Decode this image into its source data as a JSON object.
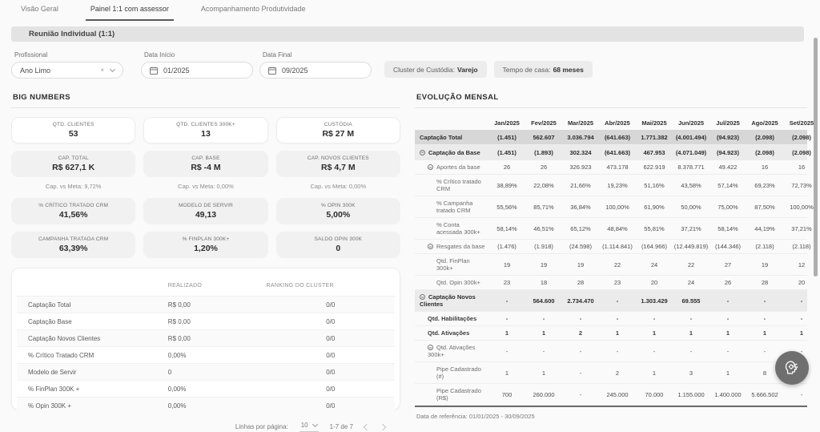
{
  "tabs": [
    {
      "label": "Visão Geral"
    },
    {
      "label": "Painel 1:1 com assessor",
      "active": true
    },
    {
      "label": "Acompanhamento Produtividade"
    }
  ],
  "section_header": "Reunião Individual (1:1)",
  "filters": {
    "profissional": {
      "label": "Profissional",
      "value": "Ano Limo"
    },
    "data_inicio": {
      "label": "Data Início",
      "value": "01/2025"
    },
    "data_final": {
      "label": "Data Final",
      "value": "09/2025"
    },
    "badges": [
      {
        "label": "Cluster de Custódia:",
        "value": "Varejo"
      },
      {
        "label": "Tempo de casa:",
        "value": "68 meses"
      }
    ]
  },
  "big_numbers": {
    "title": "BIG NUMBERS",
    "rows": [
      {
        "variant": "white",
        "cards": [
          {
            "label": "QTD. CLIENTES",
            "value": "53"
          },
          {
            "label": "QTD. CLIENTES 300K+",
            "value": "13"
          },
          {
            "label": "CUSTÓDIA",
            "value": "R$ 27 M"
          }
        ]
      },
      {
        "variant": "gray",
        "cards": [
          {
            "label": "CAP. TOTAL",
            "value": "R$ 627,1 K",
            "meta": "Cap. vs Meta: 9,72%"
          },
          {
            "label": "CAP. BASE",
            "value": "R$ -4 M",
            "meta": "Cap. vs Meta: 0,00%"
          },
          {
            "label": "CAP. NOVOS CLIENTES",
            "value": "R$ 4,7 M",
            "meta": "Cap. vs Meta: 0,00%"
          }
        ]
      },
      {
        "variant": "gray",
        "cards": [
          {
            "label": "% CRÍTICO TRATADO CRM",
            "value": "41,56%"
          },
          {
            "label": "MODELO DE SERVIR",
            "value": "49,13"
          },
          {
            "label": "% OPIN 300K",
            "value": "5,00%"
          }
        ]
      },
      {
        "variant": "gray",
        "cards": [
          {
            "label": "CAMPANHA TRATADA CRM",
            "value": "63,39%"
          },
          {
            "label": "% FINPLAN 300K+",
            "value": "1,20%"
          },
          {
            "label": "SALDO OPIN 300K",
            "value": "0"
          }
        ]
      }
    ]
  },
  "ranking_table": {
    "columns": [
      "",
      "REALIZADO",
      "RANKING DO CLUSTER"
    ],
    "rows": [
      [
        "Captação Total",
        "R$ 0,00",
        "0/0"
      ],
      [
        "Captação Base",
        "R$ 0,00",
        "0/0"
      ],
      [
        "Captação Novos Clientes",
        "R$ 0,00",
        "0/0"
      ],
      [
        "% Crítico Tratado CRM",
        "0,00%",
        "0/0"
      ],
      [
        "Modelo de Servir",
        "0",
        "0/0"
      ],
      [
        "% FinPlan 300K +",
        "0,00%",
        "0/0"
      ],
      [
        "% Opin 300K +",
        "0,00%",
        "0/0"
      ]
    ],
    "pagination": {
      "label": "Linhas por página:",
      "page_size": "10",
      "range": "1-7 de 7"
    }
  },
  "evolucao": {
    "title": "EVOLUÇÃO MENSAL",
    "months": [
      "Jan/2025",
      "Fev/2025",
      "Mar/2025",
      "Abr/2025",
      "Mai/2025",
      "Jun/2025",
      "Jul/2025",
      "Ago/2025",
      "Set/2025"
    ],
    "rows": [
      {
        "label": "Captação Total",
        "style": "total",
        "indent": 0,
        "collapsible": false,
        "values": [
          "(1.451)",
          "562.607",
          "3.036.794",
          "(641.663)",
          "1.771.382",
          "(4.001.494)",
          "(94.923)",
          "(2.098)",
          "(2.098)"
        ]
      },
      {
        "label": "Captação da Base",
        "style": "group",
        "indent": 0,
        "collapsible": true,
        "values": [
          "(1.451)",
          "(1.893)",
          "302.324",
          "(641.663)",
          "467.953",
          "(4.071.049)",
          "(94.923)",
          "(2.098)",
          "(2.098)"
        ]
      },
      {
        "label": "Aportes da base",
        "style": "sub",
        "indent": 1,
        "collapsible": true,
        "values": [
          "26",
          "26",
          "326.923",
          "473.178",
          "622.919",
          "8.378.771",
          "49.422",
          "16",
          "16"
        ]
      },
      {
        "label": "% Crítico tratado CRM",
        "style": "leaf",
        "indent": 2,
        "collapsible": false,
        "values": [
          "38,89%",
          "22,08%",
          "21,66%",
          "19,23%",
          "51,16%",
          "43,58%",
          "57,14%",
          "69,23%",
          "72,73%"
        ]
      },
      {
        "label": "% Campanha tratado CRM",
        "style": "leaf",
        "indent": 2,
        "collapsible": false,
        "values": [
          "55,56%",
          "85,71%",
          "36,84%",
          "100,00%",
          "61,90%",
          "50,00%",
          "75,00%",
          "87,50%",
          "100,00%"
        ]
      },
      {
        "label": "% Conta acessada 300k+",
        "style": "leaf",
        "indent": 2,
        "collapsible": false,
        "values": [
          "58,14%",
          "46,51%",
          "65,12%",
          "48,84%",
          "55,81%",
          "37,21%",
          "58,14%",
          "44,19%",
          "37,21%"
        ]
      },
      {
        "label": "Resgates da base",
        "style": "sub",
        "indent": 1,
        "collapsible": true,
        "values": [
          "(1.476)",
          "(1.918)",
          "(24.598)",
          "(1.114.841)",
          "(164.966)",
          "(12.449.819)",
          "(144.346)",
          "(2.118)",
          "(2.118)"
        ]
      },
      {
        "label": "Qtd. FinPlan 300k+",
        "style": "leaf",
        "indent": 2,
        "collapsible": false,
        "values": [
          "19",
          "19",
          "19",
          "22",
          "24",
          "22",
          "27",
          "19",
          "12"
        ]
      },
      {
        "label": "Qtd. Opin 300k+",
        "style": "leaf",
        "indent": 2,
        "collapsible": false,
        "values": [
          "23",
          "18",
          "28",
          "23",
          "20",
          "24",
          "26",
          "28",
          "20"
        ]
      },
      {
        "label": "Captação Novos Clientes",
        "style": "group",
        "indent": 0,
        "collapsible": true,
        "values": [
          "-",
          "564.600",
          "2.734.470",
          "-",
          "1.303.429",
          "69.555",
          "-",
          "-",
          "-"
        ]
      },
      {
        "label": "Qtd. Habilitações",
        "style": "sub2",
        "indent": 1,
        "collapsible": false,
        "values": [
          "-",
          "-",
          "-",
          "-",
          "-",
          "-",
          "-",
          "-",
          "-"
        ]
      },
      {
        "label": "Qtd. Ativações",
        "style": "sub2",
        "indent": 1,
        "collapsible": false,
        "values": [
          "1",
          "1",
          "2",
          "1",
          "1",
          "1",
          "1",
          "1",
          "1"
        ]
      },
      {
        "label": "Qtd. Ativações 300k+",
        "style": "sub",
        "indent": 1,
        "collapsible": true,
        "values": [
          "-",
          "-",
          "-",
          "-",
          "-",
          "-",
          "-",
          "-",
          "-"
        ]
      },
      {
        "label": "Pipe Cadastrado (#)",
        "style": "leaf",
        "indent": 2,
        "collapsible": false,
        "values": [
          "1",
          "1",
          "-",
          "2",
          "1",
          "3",
          "1",
          "8",
          "-"
        ]
      },
      {
        "label": "Pipe Cadastrado (R$)",
        "style": "leaf",
        "indent": 2,
        "collapsible": false,
        "values": [
          "700",
          "260.000",
          "-",
          "245.000",
          "70.000",
          "1.155.000",
          "1.400.000",
          "5.666.502",
          "-"
        ]
      }
    ],
    "footnote": "Data de referência: 01/01/2025 - 30/09/2025"
  },
  "colors": {
    "total_row_bg": "#d7d7d7",
    "group_row_bg": "#ebebeb",
    "section_bar_bg": "#e3e3e3",
    "card_gray_bg": "#f1f1f1",
    "fab_bg": "#6f6f6f"
  }
}
